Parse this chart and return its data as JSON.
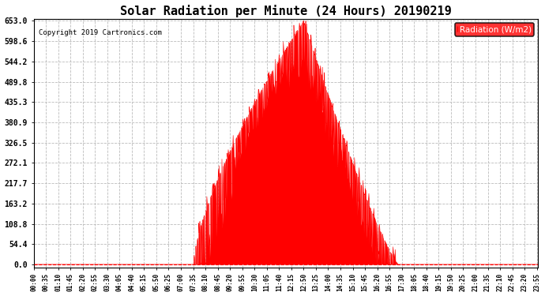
{
  "title": "Solar Radiation per Minute (24 Hours) 20190219",
  "copyright": "Copyright 2019 Cartronics.com",
  "legend_label": "Radiation (W/m2)",
  "fill_color": "#FF0000",
  "line_color": "#FF0000",
  "background_color": "#FFFFFF",
  "grid_color": "#AAAAAA",
  "dashed_line_color": "#FF0000",
  "yticks": [
    0.0,
    54.4,
    108.8,
    163.2,
    217.7,
    272.1,
    326.5,
    380.9,
    435.3,
    489.8,
    544.2,
    598.6,
    653.0
  ],
  "ymax": 653.0,
  "ymin": 0.0,
  "total_minutes": 1440,
  "peak_value": 653.0,
  "sunrise_min": 455,
  "sunset_min": 1040,
  "peak_min": 770
}
